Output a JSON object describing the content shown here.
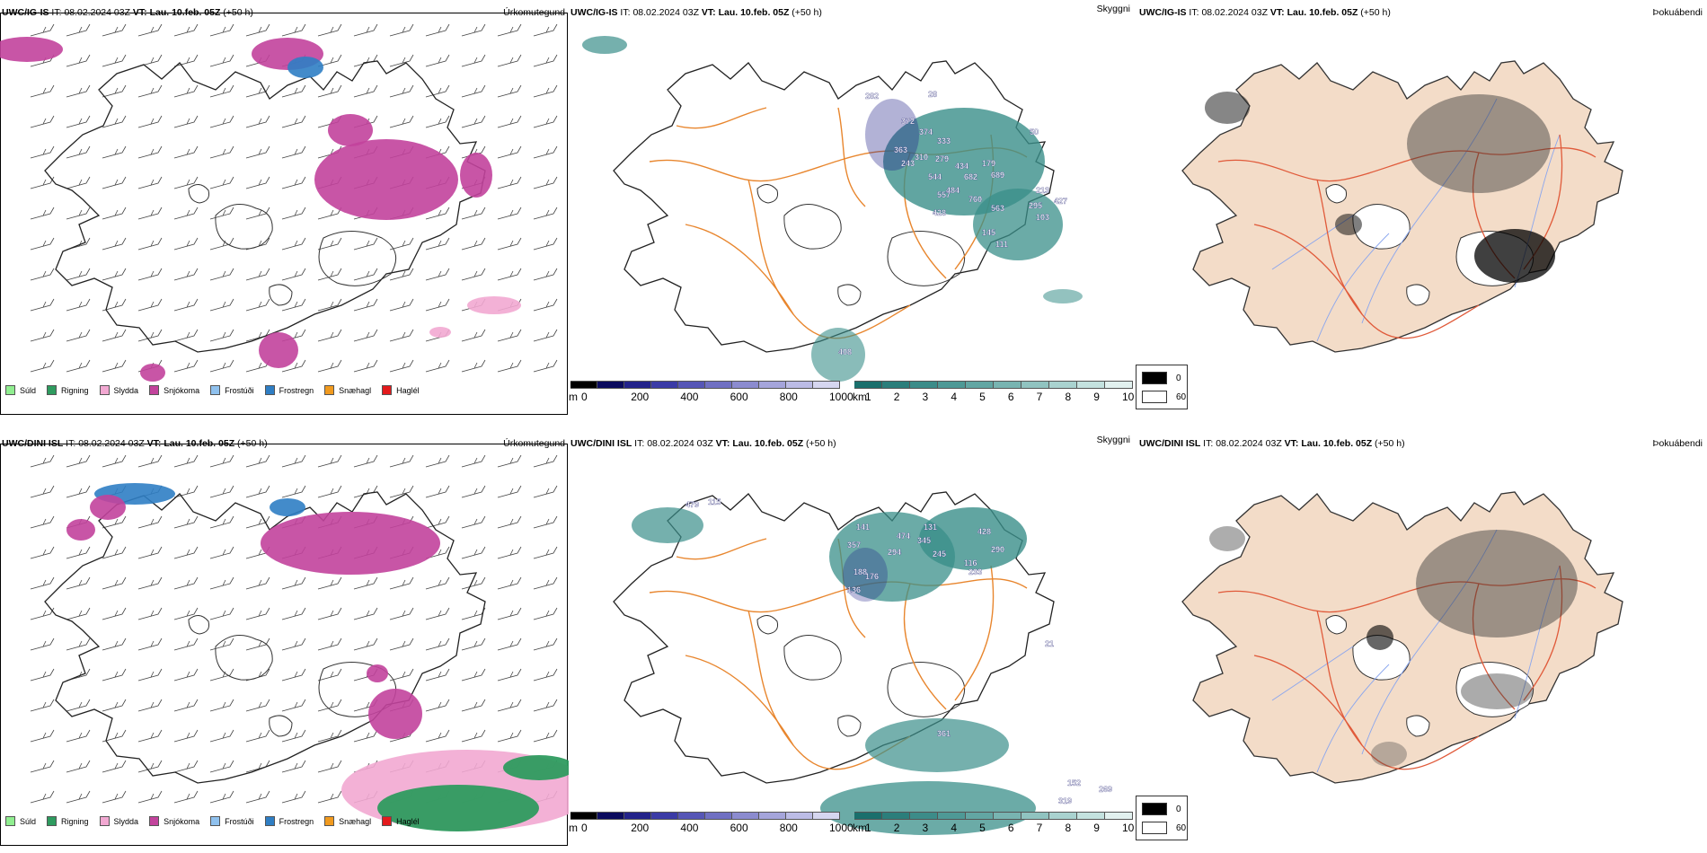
{
  "panels": {
    "ig_precip": {
      "header": {
        "model": "UWC/IG-IS",
        "it_label": "IT:",
        "it_value": "08.02.2024 03Z",
        "vt_label": "VT:",
        "vt_value": "Lau. 10.feb. 05Z",
        "lead": "(+50 h)"
      },
      "product": "Úrkomutegund"
    },
    "ig_cloud": {
      "header": {
        "model": "UWC/IG-IS",
        "it_label": "IT:",
        "it_value": "08.02.2024 03Z",
        "vt_label": "VT:",
        "vt_value": "Lau. 10.feb. 05Z",
        "lead": "(+50 h)"
      },
      "product": "Skyggni",
      "numbers": [
        "282",
        "28",
        "372",
        "374",
        "333",
        "363",
        "310",
        "279",
        "434",
        "243",
        "682",
        "544",
        "484",
        "689",
        "557",
        "760",
        "213",
        "427",
        "295",
        "563",
        "428",
        "103",
        "145",
        "111",
        "408",
        "179",
        "50"
      ]
    },
    "ig_fog": {
      "header": {
        "model": "UWC/IG-IS",
        "it_label": "IT:",
        "it_value": "08.02.2024 03Z",
        "vt_label": "VT:",
        "vt_value": "Lau. 10.feb. 05Z",
        "lead": "(+50 h)"
      },
      "product": "Þokuábendi"
    },
    "dini_precip": {
      "header": {
        "model": "UWC/DINI ISL",
        "it_label": "IT:",
        "it_value": "08.02.2024 03Z",
        "vt_label": "VT:",
        "vt_value": "Lau. 10.feb. 05Z",
        "lead": "(+50 h)"
      },
      "product": "Úrkomutegund"
    },
    "dini_cloud": {
      "header": {
        "model": "UWC/DINI ISL",
        "it_label": "IT:",
        "it_value": "08.02.2024 03Z",
        "vt_label": "VT:",
        "vt_value": "Lau. 10.feb. 05Z",
        "lead": "(+50 h)"
      },
      "product": "Skyggni",
      "numbers": [
        "479",
        "115",
        "141",
        "131",
        "428",
        "357",
        "474",
        "345",
        "290",
        "294",
        "245",
        "188",
        "176",
        "136",
        "116",
        "233",
        "21",
        "361",
        "152",
        "319",
        "269"
      ]
    },
    "dini_fog": {
      "header": {
        "model": "UWC/DINI ISL",
        "it_label": "IT:",
        "it_value": "08.02.2024 03Z",
        "vt_label": "VT:",
        "vt_value": "Lau. 10.feb. 05Z",
        "lead": "(+50 h)"
      },
      "product": "Þokuábendi"
    }
  },
  "precip_legend": [
    {
      "label": "Súld",
      "color": "#90ee90"
    },
    {
      "label": "Rigning",
      "color": "#2e9b5f"
    },
    {
      "label": "Slydda",
      "color": "#f2a8d2"
    },
    {
      "label": "Snjókoma",
      "color": "#c2439c"
    },
    {
      "label": "Frostúði",
      "color": "#8fc1ee"
    },
    {
      "label": "Frostregn",
      "color": "#2f7ec4"
    },
    {
      "label": "Snæhagl",
      "color": "#f19a1e"
    },
    {
      "label": "Haglél",
      "color": "#e31a1c"
    }
  ],
  "ceiling_bar": {
    "unit": "m",
    "labels": [
      "0",
      "200",
      "400",
      "600",
      "800",
      "1000"
    ],
    "colors": [
      "#000000",
      "#0b0b5e",
      "#23238a",
      "#3b3ba6",
      "#5656b6",
      "#7070c3",
      "#8b8bcf",
      "#a5a5db",
      "#bcbce6",
      "#d6d6f0"
    ]
  },
  "visibility_bar": {
    "unit": "km",
    "labels": [
      "1",
      "2",
      "3",
      "4",
      "5",
      "6",
      "7",
      "8",
      "9",
      "10"
    ],
    "colors": [
      "#1a6f6c",
      "#2b7e7b",
      "#3c8c89",
      "#4e9996",
      "#62a6a3",
      "#78b4b1",
      "#90c3c0",
      "#a9d2cf",
      "#c4e2df",
      "#e2f1ef"
    ]
  },
  "fog_key": [
    {
      "label": "0",
      "color": "#000000"
    },
    {
      "label": "60",
      "color": "#ffffff"
    }
  ],
  "colors": {
    "snow": "#c2439c",
    "sleet": "#f2a8d2",
    "rain": "#2e9b5f",
    "freezing_rain": "#2f7ec4",
    "cloud_teal": "#3a8f8a",
    "ceiling_blue": "#22228a",
    "road": "#e8862e",
    "land_fog": "#f3dcc8",
    "road_fog": "#e05a3a",
    "river": "#8aa6ee"
  }
}
